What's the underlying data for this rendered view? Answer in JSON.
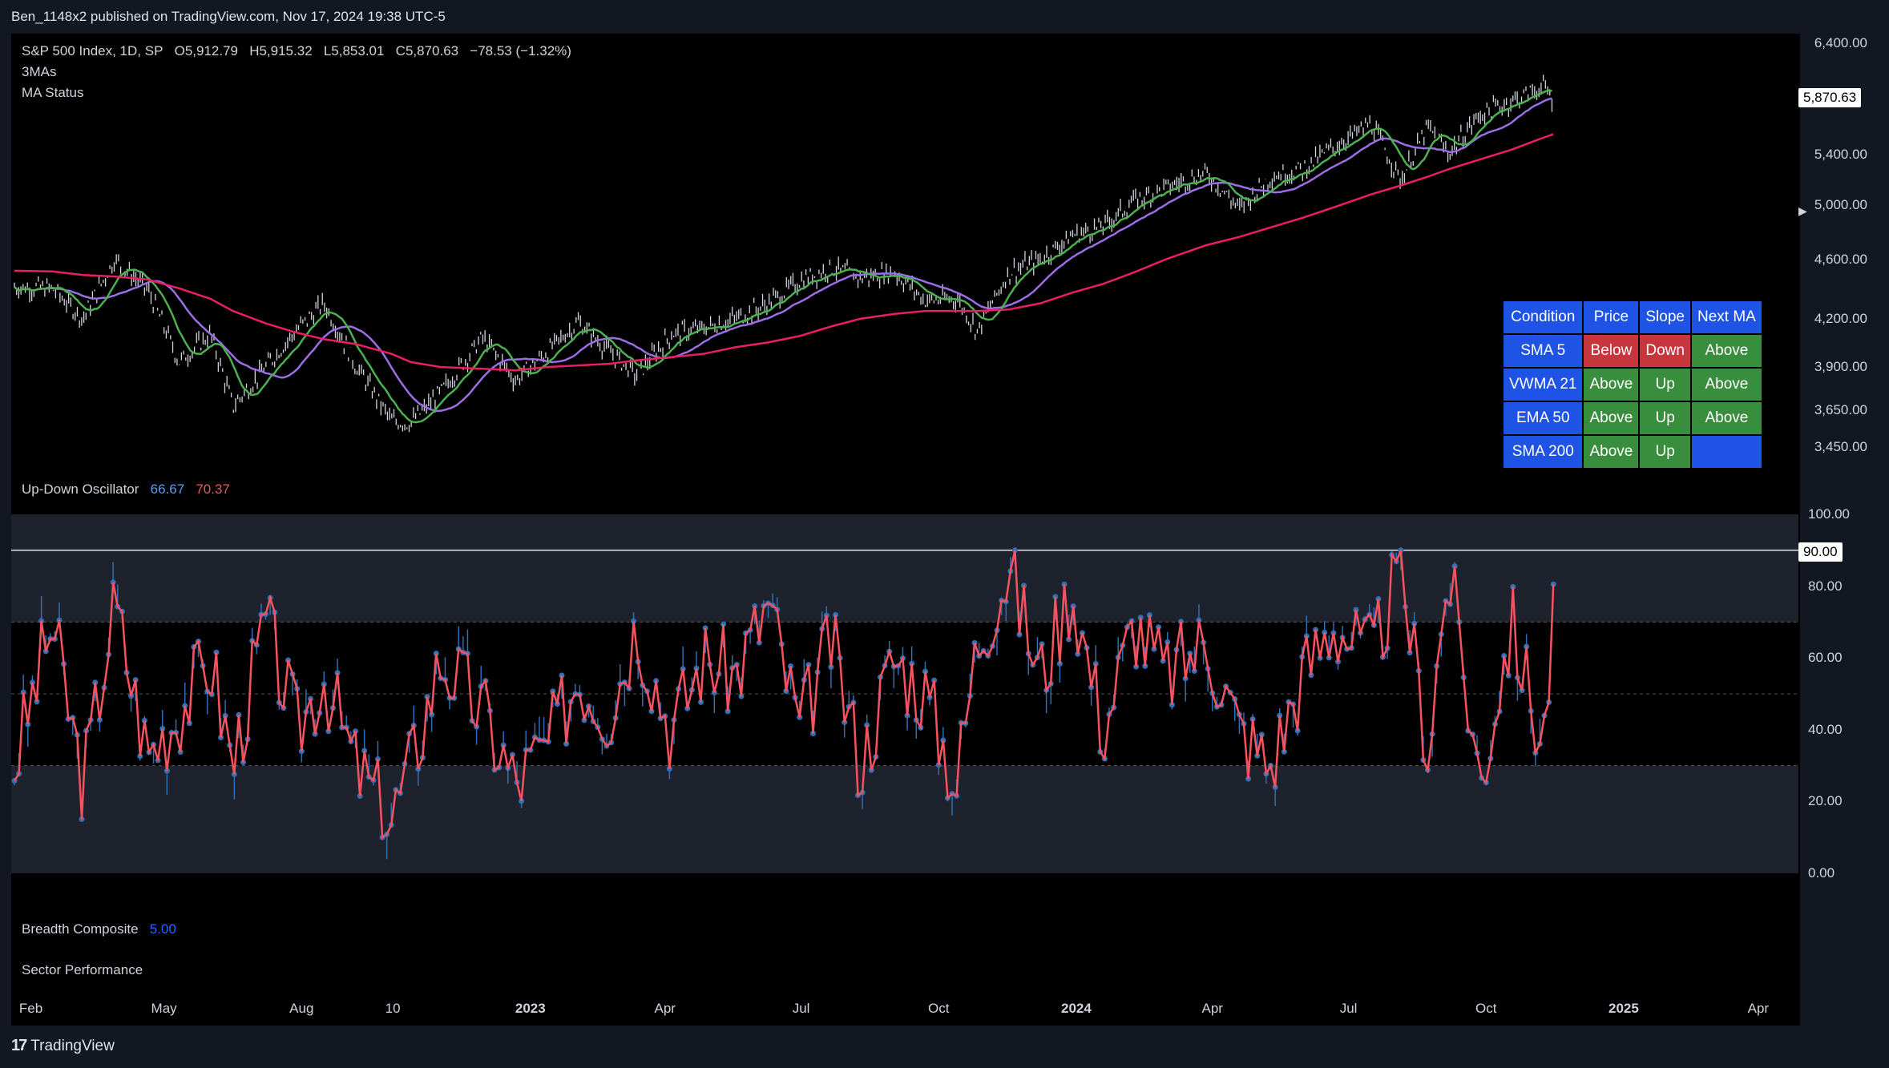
{
  "header": {
    "publisher_line": "Ben_1148x2 published on TradingView.com, Nov 17, 2024 19:38 UTC-5"
  },
  "legend": {
    "symbol": "S&P 500 Index, 1D, SP",
    "o_label": "O",
    "o_value": "5,912.79",
    "h_label": "H",
    "h_value": "5,915.32",
    "l_label": "L",
    "l_value": "5,853.01",
    "c_label": "C",
    "c_value": "5,870.63",
    "change": "−78.53 (−1.32%)",
    "indicator1": "3MAs",
    "indicator2": "MA Status"
  },
  "oscillator": {
    "name": "Up-Down Oscillator",
    "value1": "66.67",
    "value2": "70.37",
    "value1_color": "#5b9cf6",
    "value2_color": "#f7525f"
  },
  "breadth": {
    "name": "Breadth Composite",
    "value": "5.00",
    "value_color": "#2962ff"
  },
  "sector": {
    "name": "Sector Performance"
  },
  "price_axis": {
    "ticks": [
      "6,400.00",
      "5,400.00",
      "5,000.00",
      "4,600.00",
      "4,200.00",
      "3,900.00",
      "3,650.00",
      "3,450.00"
    ],
    "last_price": "5,870.63"
  },
  "osc_axis": {
    "ticks": [
      "100.00",
      "80.00",
      "60.00",
      "40.00",
      "20.00",
      "0.00"
    ],
    "badge": "90.00"
  },
  "time_axis": {
    "ticks": [
      "Feb",
      "May",
      "Aug",
      "10",
      "2023",
      "Apr",
      "Jul",
      "Oct",
      "2024",
      "Apr",
      "Jul",
      "Oct",
      "2025",
      "Apr"
    ]
  },
  "ma_table": {
    "header": [
      "Condition",
      "Price",
      "Slope",
      "Next MA"
    ],
    "rows": [
      [
        "SMA 5",
        "Below",
        "Down",
        "Above"
      ],
      [
        "VWMA 21",
        "Above",
        "Up",
        "Above"
      ],
      [
        "EMA 50",
        "Above",
        "Up",
        "Above"
      ],
      [
        "SMA 200",
        "Above",
        "Up",
        ""
      ]
    ],
    "colors": {
      "header": "#1e53e5",
      "label": "#1e53e5",
      "green": "#388e3c",
      "red": "#c8363d",
      "blue": "#1e53e5"
    }
  },
  "footer": {
    "brand": "TradingView"
  },
  "colors": {
    "price_bars": "#d1d4dc",
    "sma5": "#4caf50",
    "vwma21": "#9c6ee6",
    "ema50": "#9c6ee6",
    "sma200": "#e91e63",
    "osc_line": "#f7525f",
    "osc_dots": "#2e6fb5",
    "band": "#1e222d"
  },
  "chart_data": [
    {
      "type": "line",
      "title": "S&P 500 Index, 1D, SP",
      "x": [
        "2022-01-21",
        "2022-02-15",
        "2022-03-08",
        "2022-03-29",
        "2022-04-20",
        "2022-05-11",
        "2022-06-01",
        "2022-06-16",
        "2022-07-08",
        "2022-07-29",
        "2022-08-16",
        "2022-09-06",
        "2022-09-30",
        "2022-10-13",
        "2022-11-02",
        "2022-11-30",
        "2022-12-22",
        "2023-01-12",
        "2023-02-02",
        "2023-02-23",
        "2023-03-13",
        "2023-04-05",
        "2023-04-27",
        "2023-05-18",
        "2023-06-09",
        "2023-06-30",
        "2023-07-21",
        "2023-08-10",
        "2023-09-01",
        "2023-09-22",
        "2023-10-13",
        "2023-10-27",
        "2023-11-17",
        "2023-12-08",
        "2023-12-29",
        "2024-01-19",
        "2024-02-09",
        "2024-03-01",
        "2024-03-28",
        "2024-04-19",
        "2024-05-10",
        "2024-05-31",
        "2024-06-21",
        "2024-07-16",
        "2024-08-05",
        "2024-08-23",
        "2024-09-06",
        "2024-09-27",
        "2024-10-18",
        "2024-11-08",
        "2024-11-15"
      ],
      "series": [
        {
          "name": "S&P 500 Index",
          "values": [
            4410,
            4400,
            4200,
            4600,
            4390,
            3930,
            4100,
            3670,
            3900,
            4130,
            4300,
            3910,
            3590,
            3580,
            3750,
            4080,
            3820,
            3990,
            4180,
            3990,
            3850,
            4100,
            4140,
            4200,
            4300,
            4450,
            4540,
            4470,
            4510,
            4320,
            4330,
            4120,
            4510,
            4600,
            4770,
            4840,
            5030,
            5135,
            5250,
            4970,
            5220,
            5280,
            5460,
            5660,
            5190,
            5630,
            5410,
            5740,
            5860,
            5995,
            5870
          ]
        },
        {
          "name": "SMA 200",
          "values": [
            4520,
            4515,
            4490,
            4480,
            4460,
            4400,
            4330,
            4250,
            4170,
            4110,
            4070,
            4040,
            3980,
            3930,
            3900,
            3890,
            3880,
            3900,
            3910,
            3920,
            3940,
            3960,
            3980,
            4020,
            4050,
            4090,
            4150,
            4200,
            4230,
            4250,
            4250,
            4250,
            4260,
            4300,
            4370,
            4430,
            4510,
            4600,
            4700,
            4760,
            4830,
            4900,
            4980,
            5080,
            5150,
            5220,
            5280,
            5360,
            5440,
            5540,
            5570
          ]
        }
      ],
      "ylim": [
        3400,
        6450
      ],
      "log_scale": true
    },
    {
      "type": "line",
      "title": "Up-Down Oscillator",
      "x": [
        "2022-01-21",
        "2022-02-15",
        "2022-03-08",
        "2022-03-29",
        "2022-04-20",
        "2022-05-11",
        "2022-06-01",
        "2022-06-16",
        "2022-07-08",
        "2022-07-29",
        "2022-08-16",
        "2022-09-06",
        "2022-09-30",
        "2022-10-13",
        "2022-11-02",
        "2022-11-30",
        "2022-12-22",
        "2023-01-12",
        "2023-02-02",
        "2023-02-23",
        "2023-03-13",
        "2023-04-05",
        "2023-04-27",
        "2023-05-18",
        "2023-06-09",
        "2023-06-30",
        "2023-07-21",
        "2023-08-10",
        "2023-09-01",
        "2023-09-22",
        "2023-10-13",
        "2023-10-27",
        "2023-11-17",
        "2023-12-08",
        "2023-12-29",
        "2024-01-19",
        "2024-02-09",
        "2024-03-01",
        "2024-03-28",
        "2024-04-19",
        "2024-05-10",
        "2024-05-31",
        "2024-06-21",
        "2024-07-16",
        "2024-08-05",
        "2024-08-23",
        "2024-09-06",
        "2024-09-27",
        "2024-10-18",
        "2024-11-08",
        "2024-11-15"
      ],
      "series": [
        {
          "name": "Up-Down Oscillator",
          "values": [
            30,
            70,
            25,
            75,
            33,
            45,
            60,
            30,
            70,
            40,
            55,
            30,
            15,
            30,
            60,
            45,
            25,
            35,
            55,
            45,
            70,
            40,
            60,
            55,
            75,
            40,
            65,
            30,
            60,
            50,
            25,
            65,
            85,
            55,
            80,
            40,
            70,
            55,
            65,
            40,
            30,
            55,
            70,
            60,
            85,
            35,
            85,
            25,
            70,
            35,
            70
          ]
        }
      ],
      "ylim": [
        0,
        100
      ],
      "reference_lines": [
        90,
        70,
        50,
        30
      ]
    }
  ]
}
